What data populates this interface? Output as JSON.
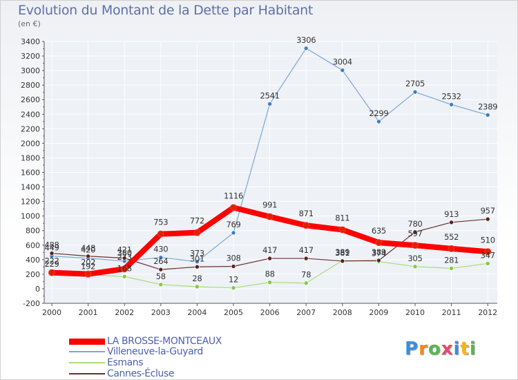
{
  "chart_data": {
    "type": "line",
    "title": "Evolution du Montant de la Dette par Habitant",
    "subtitle": "(en €)",
    "x": [
      "2000",
      "2001",
      "2002",
      "2003",
      "2004",
      "2005",
      "2006",
      "2007",
      "2008",
      "2009",
      "2010",
      "2011",
      "2012"
    ],
    "ylim": [
      -200,
      3400
    ],
    "yticks": [
      -200,
      0,
      200,
      400,
      600,
      800,
      1000,
      1200,
      1400,
      1600,
      1800,
      2000,
      2200,
      2400,
      2600,
      2800,
      3000,
      3200,
      3400
    ],
    "grid": true,
    "legend_position": "bottom-left",
    "series": [
      {
        "name": "LA BROSSE-MONTCEAUX",
        "color": "#ff0000",
        "marker": "#dd2200",
        "width": 8,
        "values": [
          222,
          202,
          273,
          753,
          772,
          1116,
          991,
          871,
          811,
          635,
          597,
          552,
          510
        ]
      },
      {
        "name": "Villeneuve-la-Guyard",
        "color": "#7aa6d6",
        "marker": "#3d7fc4",
        "width": 1.2,
        "values": [
          449,
          420,
          380,
          430,
          373,
          769,
          2541,
          3306,
          3004,
          2299,
          2705,
          2532,
          2389
        ]
      },
      {
        "name": "Esmans",
        "color": "#a8dd7a",
        "marker": "#86c940",
        "width": 1.2,
        "values": [
          229,
          192,
          168,
          58,
          28,
          12,
          88,
          78,
          389,
          374,
          305,
          281,
          347
        ]
      },
      {
        "name": "Cannes-Écluse",
        "color": "#6a2e2e",
        "marker": "#5a2222",
        "width": 1.2,
        "values": [
          488,
          448,
          421,
          264,
          301,
          308,
          417,
          417,
          381,
          389,
          780,
          913,
          957
        ]
      }
    ]
  },
  "logo": {
    "letters": [
      "P",
      "r",
      "o",
      "x",
      "i",
      "t",
      "i"
    ],
    "colors": [
      "#3a8fd8",
      "#f08a1c",
      "#56b84a",
      "#e84a6a",
      "#3a8fd8",
      "#f0b81c",
      "#56b84a"
    ]
  }
}
